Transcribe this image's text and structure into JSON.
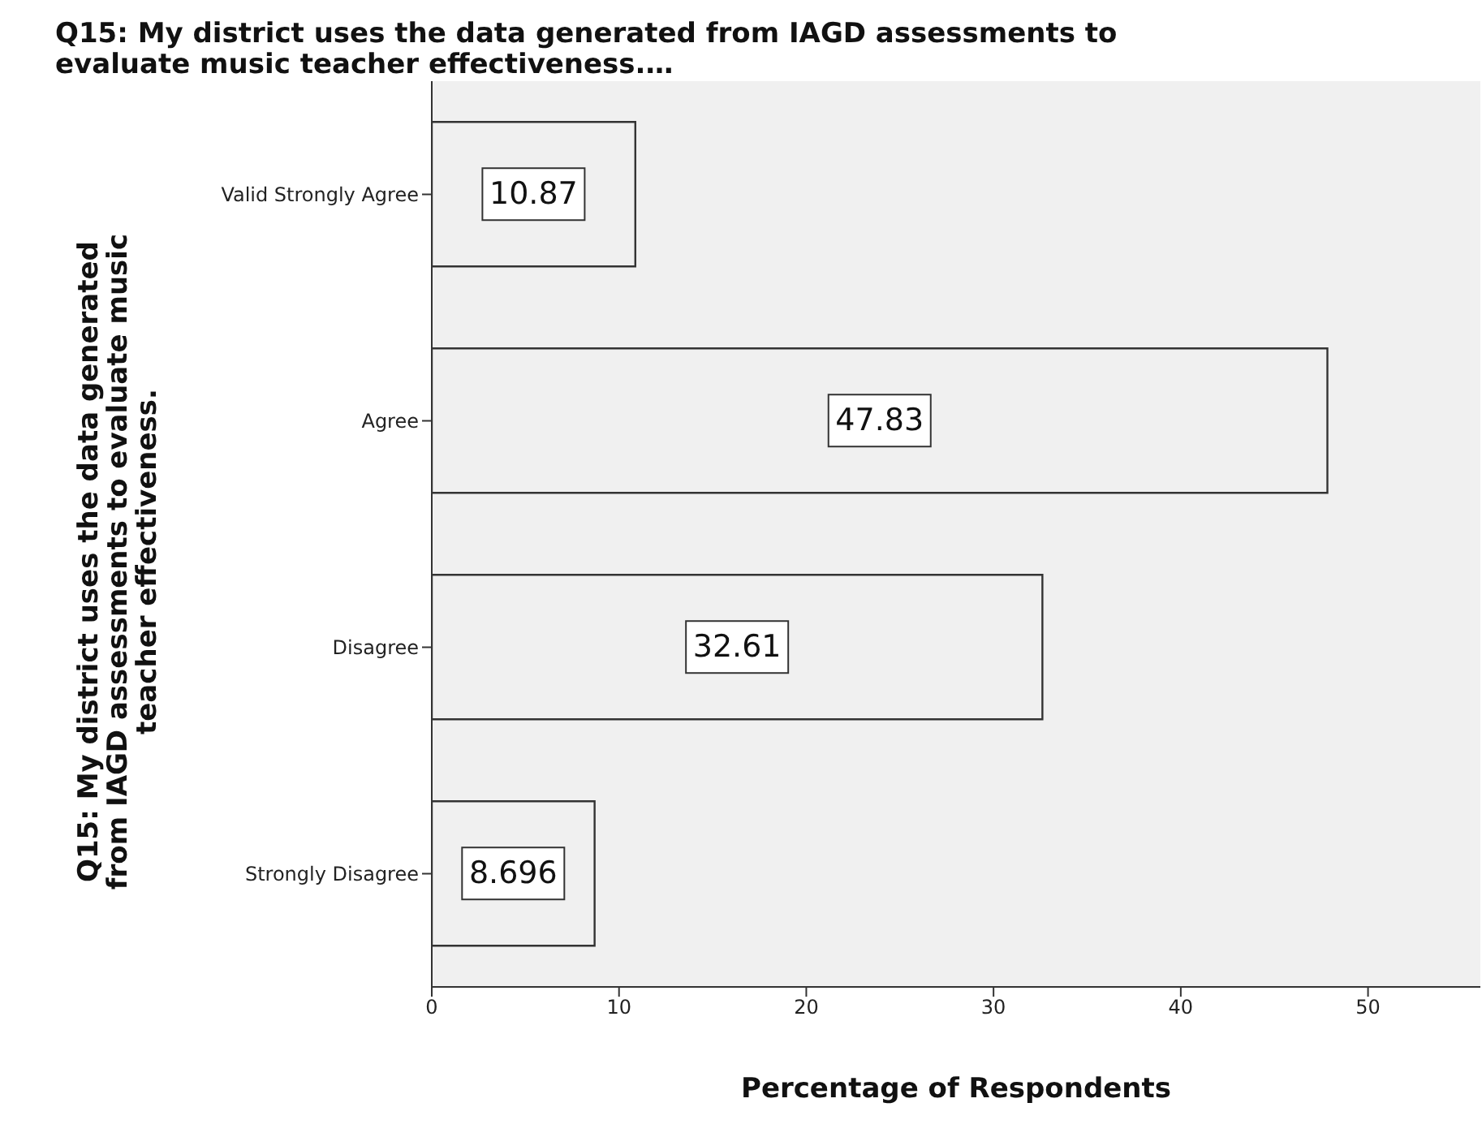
{
  "chart_data": {
    "type": "bar",
    "orientation": "horizontal",
    "title": "Q15: My district uses the data generated from IAGD assessments to evaluate music teacher effectiveness.…",
    "ylabel": "Q15: My district uses the data generated from IAGD assessments to evaluate music teacher effectiveness.",
    "xlabel": "Percentage of Respondents",
    "categories": [
      "Valid Strongly Agree",
      "Agree",
      "Disagree",
      "Strongly Disagree"
    ],
    "values": [
      10.87,
      47.83,
      32.61,
      8.696
    ],
    "color": "#f0f0f0",
    "xlim": [
      0,
      56
    ],
    "xticks": [
      0,
      10,
      20,
      30,
      40,
      50
    ],
    "data_labels": true,
    "grid": false
  }
}
